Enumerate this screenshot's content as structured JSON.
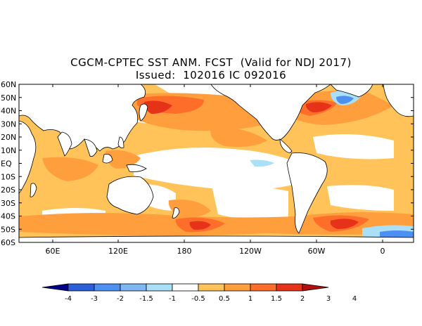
{
  "title_line1": "CGCM-CPTEC SST ANM. FCST  (Valid for NDJ 2017)",
  "title_line2": "Issued:  102016 IC 092016",
  "lat_labels": [
    "60N",
    "50N",
    "40N",
    "30N",
    "20N",
    "10N",
    "EQ",
    "10S",
    "20S",
    "30S",
    "40S",
    "50S",
    "60S"
  ],
  "lon_labels": [
    "60E",
    "120E",
    "180",
    "120W",
    "60W",
    "0"
  ],
  "colorbar": {
    "labels": [
      "-4",
      "-3",
      "-2",
      "-1.5",
      "-1",
      "-0.5",
      "0.5",
      "1",
      "1.5",
      "2",
      "3",
      "4"
    ],
    "colors": [
      "#00008c",
      "#2a5fd8",
      "#4e8ff2",
      "#7fb6f4",
      "#a9dff7",
      "#ffffff",
      "#ffc35a",
      "#ff9e3d",
      "#ff6d2a",
      "#e63219",
      "#b40f0f"
    ]
  },
  "colors": {
    "land": "#ffffff",
    "coast": "#000000",
    "anom_05_1": "#ffc35a",
    "anom_1_15": "#ff9e3d",
    "anom_15_2": "#ff6d2a",
    "anom_2_3": "#e63219",
    "anom_3_4": "#b40f0f",
    "anom_neg_05_1": "#a9dff7",
    "anom_neg_1_15": "#7fb6f4",
    "anom_neg_15_2": "#4e8ff2"
  }
}
